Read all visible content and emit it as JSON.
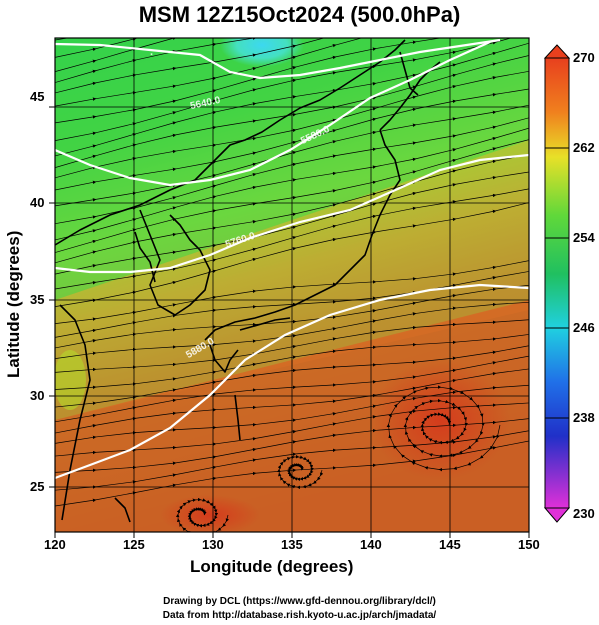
{
  "title": "MSM 12Z15Oct2024 (500.0hPa)",
  "axes": {
    "xlabel": "Longitude (degrees)",
    "ylabel": "Latitude  (degrees)",
    "xticks": [
      "120",
      "125",
      "130",
      "135",
      "140",
      "145",
      "150"
    ],
    "yticks": [
      "25",
      "30",
      "35",
      "40",
      "45"
    ],
    "xlim": [
      120,
      150
    ],
    "ylim": [
      22.4,
      47.6
    ]
  },
  "colorbar": {
    "labels": [
      "270",
      "262",
      "254",
      "246",
      "238",
      "230"
    ],
    "range": [
      230,
      270
    ]
  },
  "contours": [
    {
      "label": "5880.0"
    },
    {
      "label": "5640.0"
    },
    {
      "label": "5760.0"
    },
    {
      "label": "5580.0"
    }
  ],
  "footer": {
    "line1": "Drawing by DCL (https://www.gfd-dennou.org/library/dcl/)",
    "line2": "Data from http://database.rish.kyoto-u.ac.jp/arch/jmadata/"
  },
  "colors": {
    "warm": "#e8401e",
    "green": "#4ccc3c",
    "cyan": "#3ce8e8",
    "yellow": "#d8e42a"
  }
}
